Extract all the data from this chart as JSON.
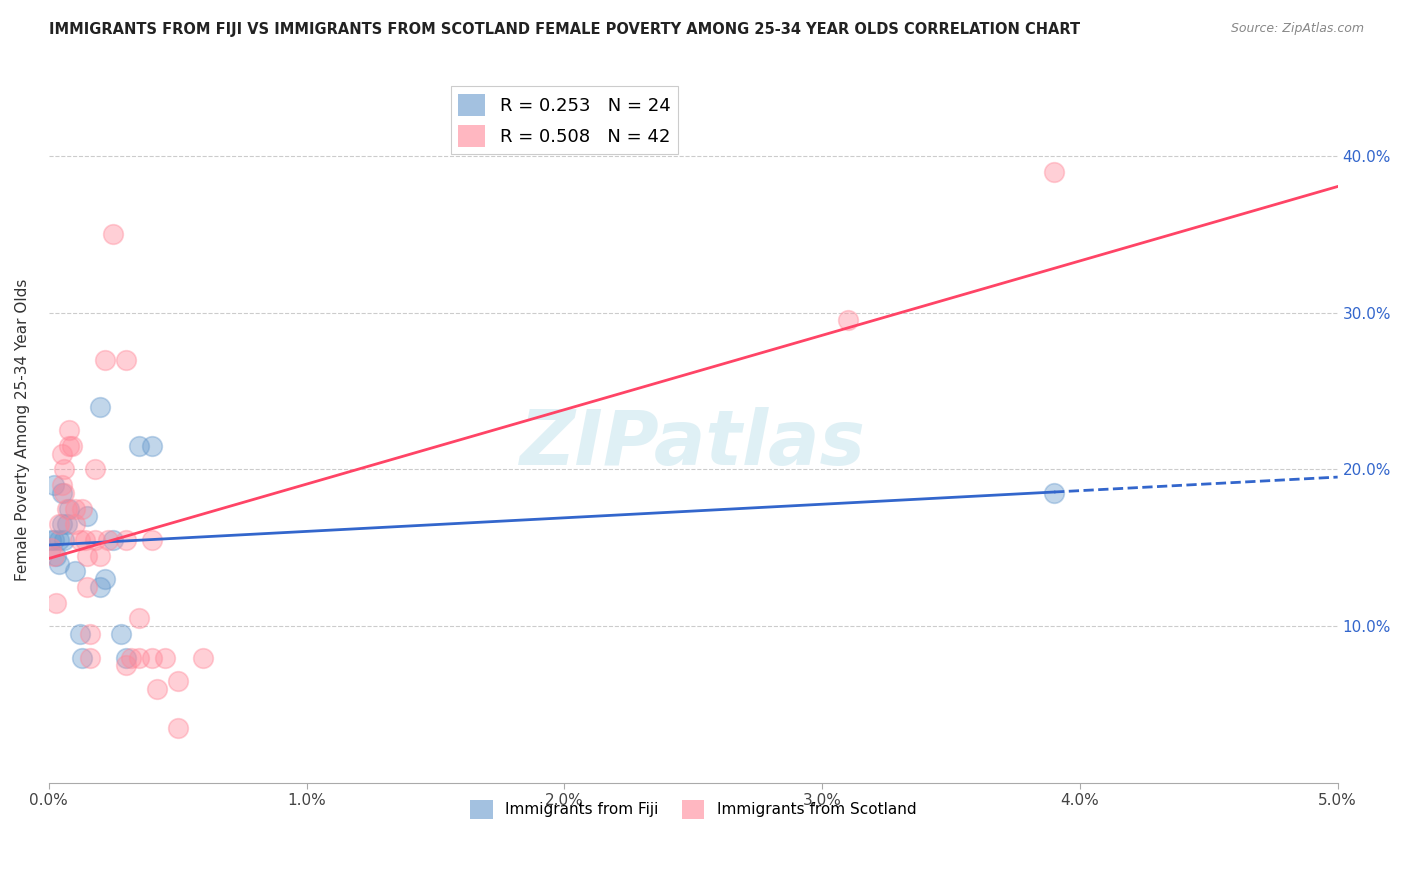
{
  "title": "IMMIGRANTS FROM FIJI VS IMMIGRANTS FROM SCOTLAND FEMALE POVERTY AMONG 25-34 YEAR OLDS CORRELATION CHART",
  "source": "Source: ZipAtlas.com",
  "ylabel": "Female Poverty Among 25-34 Year Olds",
  "xlabel_fiji": "Immigrants from Fiji",
  "xlabel_scotland": "Immigrants from Scotland",
  "xlim": [
    0.0,
    0.05
  ],
  "ylim": [
    0.0,
    0.45
  ],
  "xticks": [
    0.0,
    0.01,
    0.02,
    0.03,
    0.04,
    0.05
  ],
  "yticks": [
    0.1,
    0.2,
    0.3,
    0.4
  ],
  "fiji_R": 0.253,
  "fiji_N": 24,
  "scotland_R": 0.508,
  "scotland_N": 42,
  "fiji_color": "#6699cc",
  "scotland_color": "#ff8899",
  "fiji_line_color": "#3366cc",
  "scotland_line_color": "#ff4466",
  "watermark": "ZIPatlas",
  "fiji_points": [
    [
      0.0001,
      0.155
    ],
    [
      0.0002,
      0.19
    ],
    [
      0.0003,
      0.145
    ],
    [
      0.0004,
      0.155
    ],
    [
      0.0004,
      0.14
    ],
    [
      0.0005,
      0.185
    ],
    [
      0.0005,
      0.165
    ],
    [
      0.0006,
      0.155
    ],
    [
      0.0007,
      0.165
    ],
    [
      0.0008,
      0.175
    ],
    [
      0.001,
      0.135
    ],
    [
      0.0012,
      0.095
    ],
    [
      0.0013,
      0.08
    ],
    [
      0.0015,
      0.17
    ],
    [
      0.002,
      0.24
    ],
    [
      0.002,
      0.125
    ],
    [
      0.0022,
      0.13
    ],
    [
      0.0025,
      0.155
    ],
    [
      0.0028,
      0.095
    ],
    [
      0.003,
      0.08
    ],
    [
      0.0035,
      0.215
    ],
    [
      0.004,
      0.215
    ],
    [
      0.039,
      0.185
    ],
    [
      0.0002,
      0.155
    ]
  ],
  "scotland_points": [
    [
      0.0001,
      0.15
    ],
    [
      0.0002,
      0.145
    ],
    [
      0.0003,
      0.115
    ],
    [
      0.0004,
      0.165
    ],
    [
      0.0005,
      0.21
    ],
    [
      0.0005,
      0.19
    ],
    [
      0.0006,
      0.2
    ],
    [
      0.0006,
      0.185
    ],
    [
      0.0007,
      0.175
    ],
    [
      0.0008,
      0.215
    ],
    [
      0.0008,
      0.225
    ],
    [
      0.0009,
      0.215
    ],
    [
      0.001,
      0.165
    ],
    [
      0.001,
      0.175
    ],
    [
      0.0012,
      0.155
    ],
    [
      0.0013,
      0.175
    ],
    [
      0.0014,
      0.155
    ],
    [
      0.0015,
      0.145
    ],
    [
      0.0015,
      0.125
    ],
    [
      0.0016,
      0.095
    ],
    [
      0.0016,
      0.08
    ],
    [
      0.0018,
      0.2
    ],
    [
      0.0018,
      0.155
    ],
    [
      0.002,
      0.145
    ],
    [
      0.0022,
      0.27
    ],
    [
      0.0023,
      0.155
    ],
    [
      0.0025,
      0.35
    ],
    [
      0.003,
      0.27
    ],
    [
      0.003,
      0.155
    ],
    [
      0.003,
      0.075
    ],
    [
      0.0032,
      0.08
    ],
    [
      0.0035,
      0.08
    ],
    [
      0.0035,
      0.105
    ],
    [
      0.004,
      0.08
    ],
    [
      0.004,
      0.155
    ],
    [
      0.0042,
      0.06
    ],
    [
      0.0045,
      0.08
    ],
    [
      0.005,
      0.065
    ],
    [
      0.005,
      0.035
    ],
    [
      0.006,
      0.08
    ],
    [
      0.031,
      0.295
    ],
    [
      0.039,
      0.39
    ]
  ]
}
